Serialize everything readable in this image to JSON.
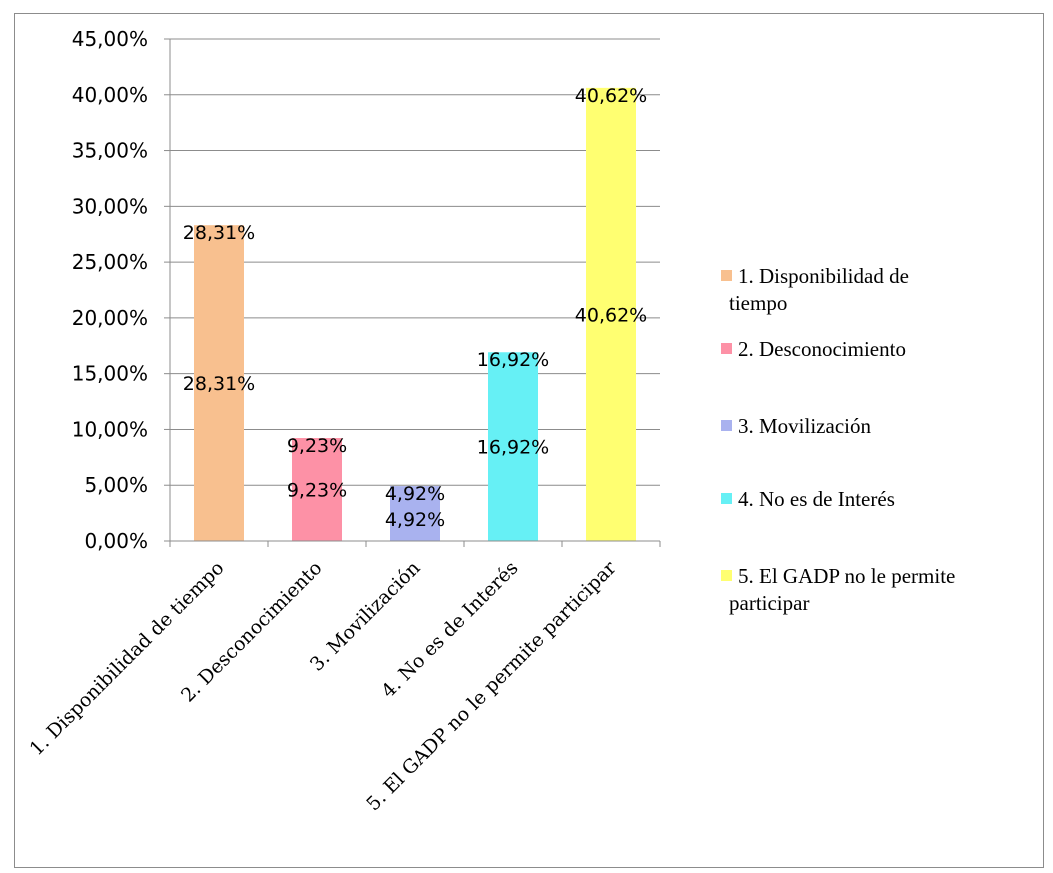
{
  "chart_data": {
    "type": "bar",
    "categories": [
      "1. Disponibilidad de tiempo",
      "2. Desconocimiento",
      "3. Movilización",
      "4. No es de Interés",
      "5. El GADP no le permite participar"
    ],
    "values": [
      28.31,
      9.23,
      4.92,
      16.92,
      40.62
    ],
    "value_labels": [
      "28,31%",
      "9,23%",
      "4,92%",
      "16,92%",
      "40,62%"
    ],
    "colors": [
      "#f8c08f",
      "#fd91a6",
      "#a9b2ef",
      "#66f0f5",
      "#ffff71"
    ],
    "ylim": [
      0,
      45
    ],
    "yticks": [
      0,
      5,
      10,
      15,
      20,
      25,
      30,
      35,
      40,
      45
    ],
    "ytick_labels": [
      "0,00%",
      "5,00%",
      "10,00%",
      "15,00%",
      "20,00%",
      "25,00%",
      "30,00%",
      "35,00%",
      "40,00%",
      "45,00%"
    ],
    "grid": true,
    "legend": {
      "position": "right",
      "entries": [
        "1. Disponibilidad de tiempo",
        "2. Desconocimiento",
        "3. Movilización",
        "4. No es de Interés",
        "5. El GADP no le permite participar"
      ]
    },
    "title": "",
    "xlabel": "",
    "ylabel": ""
  }
}
